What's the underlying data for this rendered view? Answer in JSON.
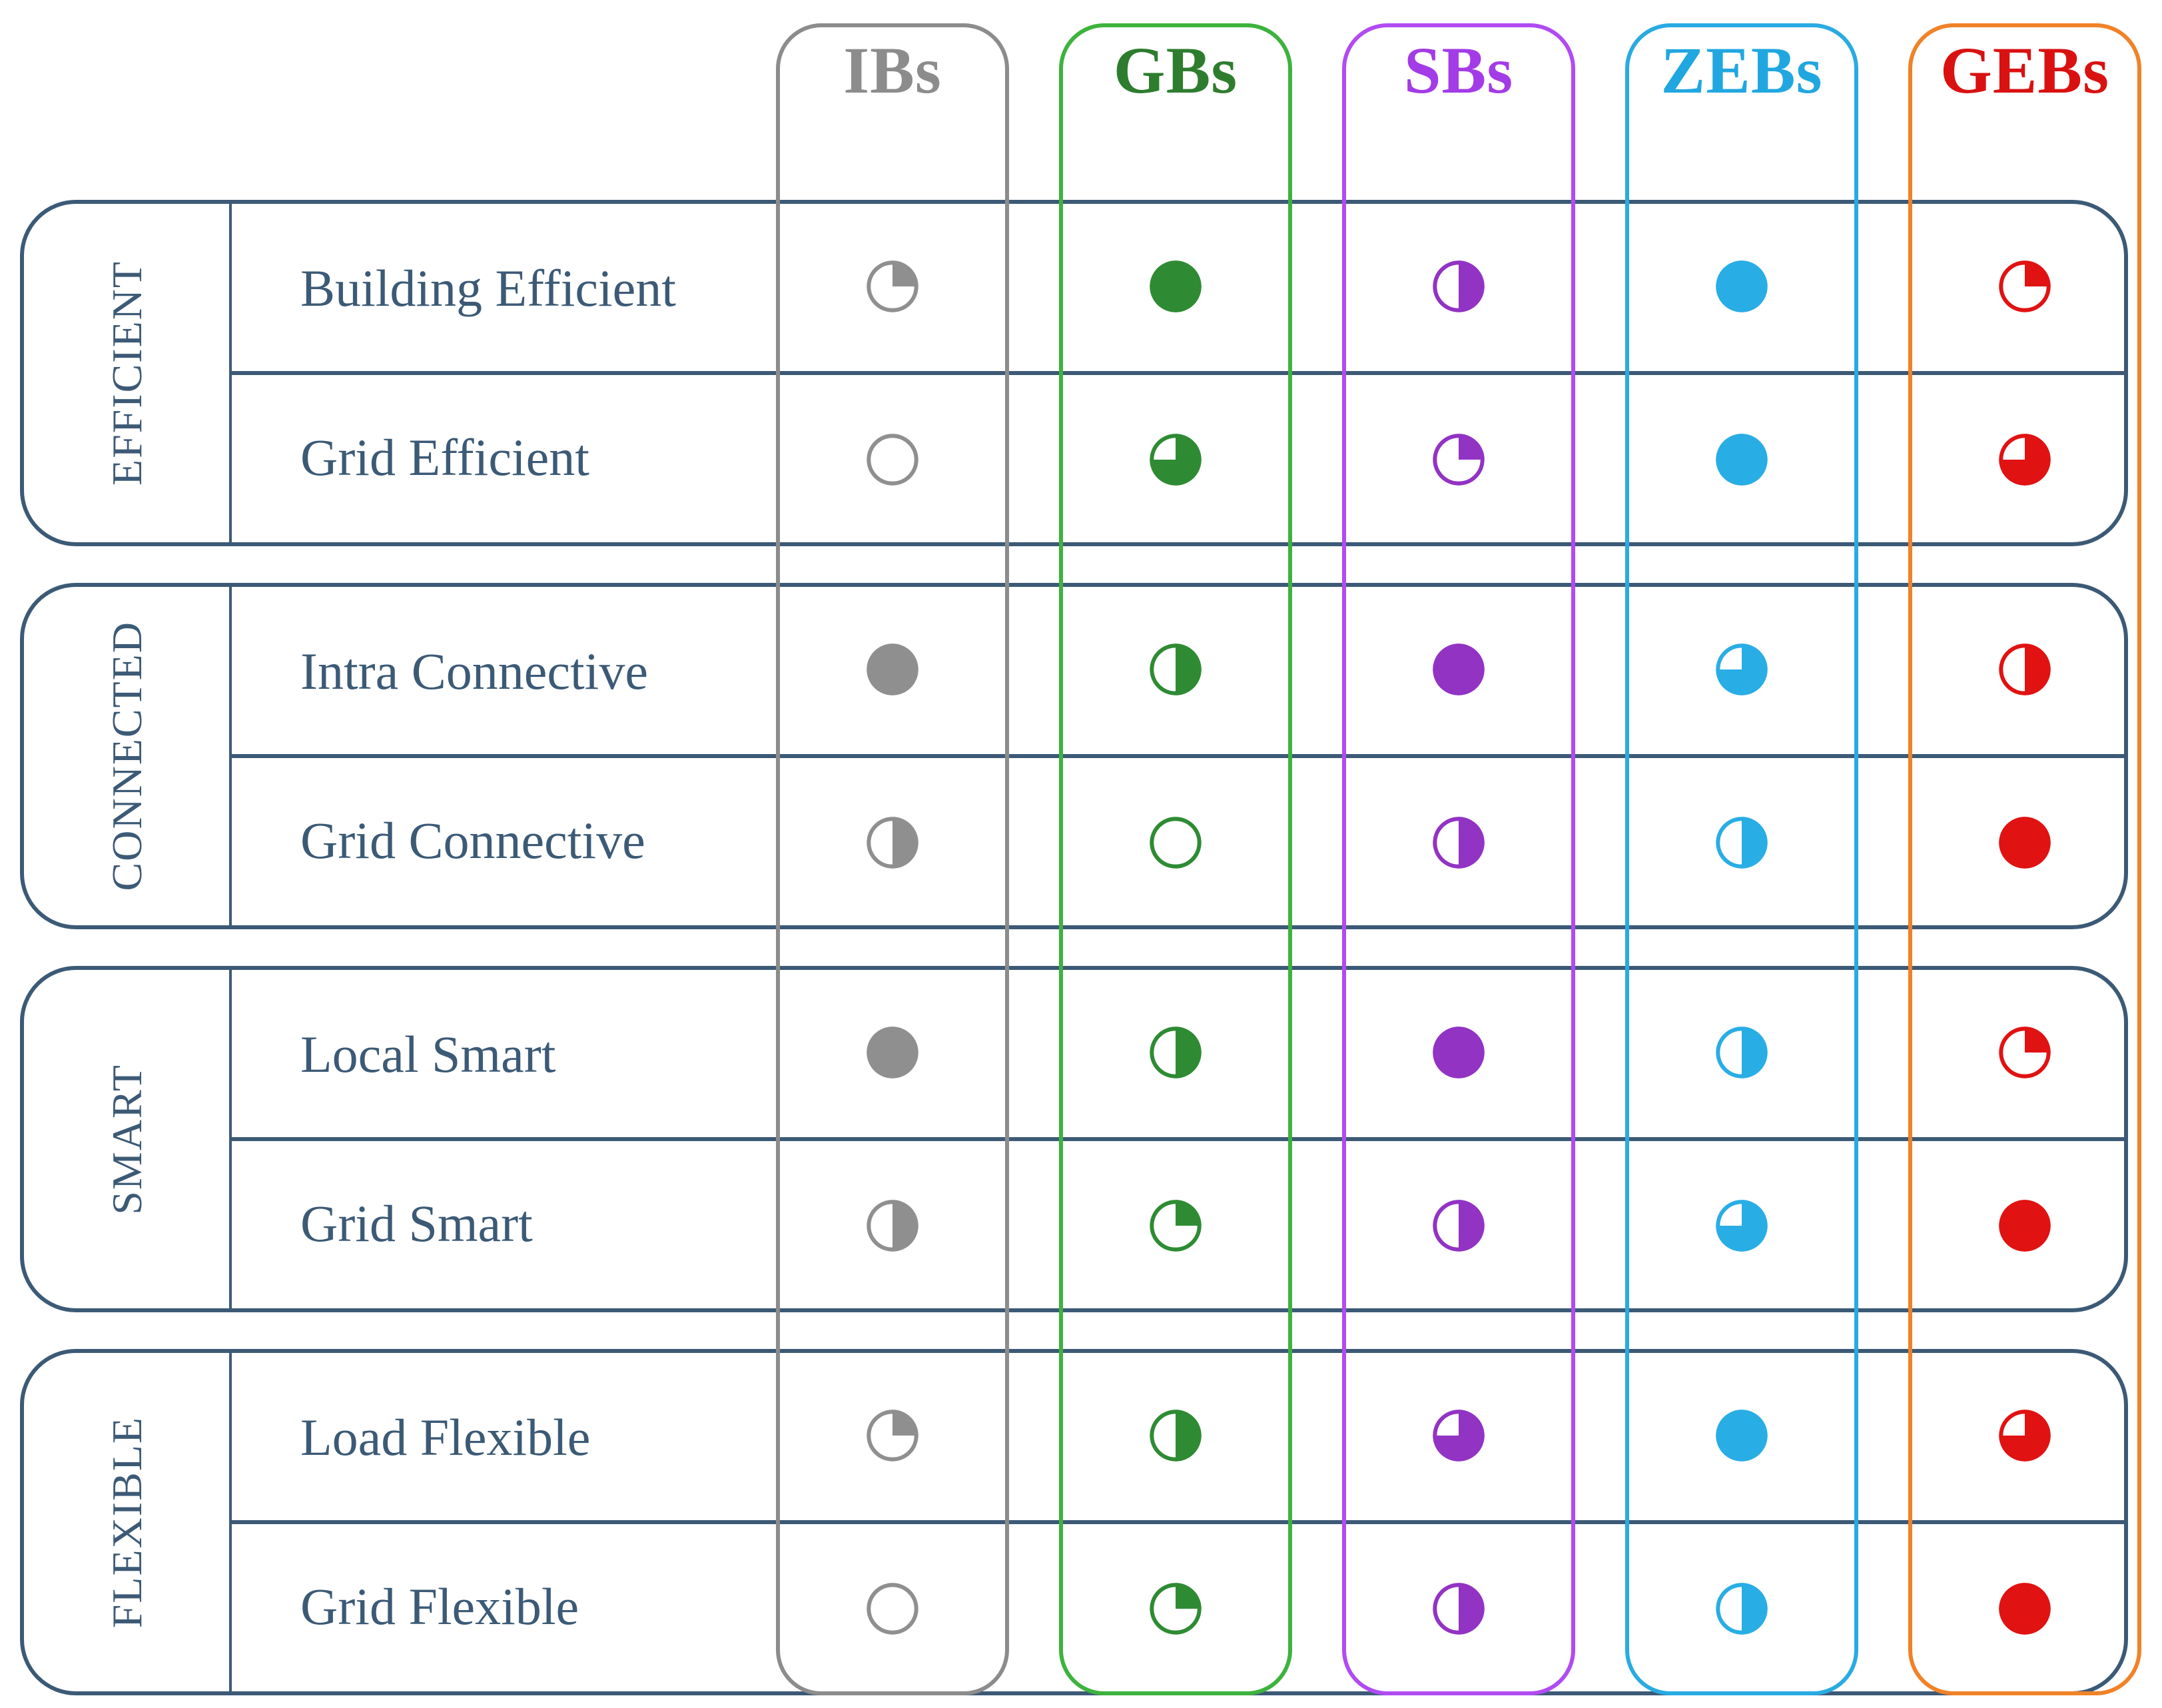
{
  "style": {
    "frame_color": "#3C5A76",
    "background": "#FFFFFF",
    "label_text_color": "#3C5A76"
  },
  "chart_data": {
    "type": "table",
    "description": "Harvey-ball comparison matrix of building types vs. characteristics; each cell is a pie icon filled 0, 25, 50, 75 or 100 percent",
    "value_unit": "percent_filled",
    "value_scale": [
      0,
      25,
      50,
      75,
      100
    ],
    "columns": [
      {
        "id": "ibs",
        "label": "IBs",
        "text_color": "#8C8C8C",
        "pill_color": "#8C8C8C",
        "ball_color": "#8F8F8F"
      },
      {
        "id": "gbs",
        "label": "GBs",
        "text_color": "#2E7D2E",
        "pill_color": "#3DB33D",
        "ball_color": "#2E8B33"
      },
      {
        "id": "sbs",
        "label": "SBs",
        "text_color": "#A33BE6",
        "pill_color": "#B14BF2",
        "ball_color": "#9233C4"
      },
      {
        "id": "zebs",
        "label": "ZEBs",
        "text_color": "#21A7E0",
        "pill_color": "#29ABE2",
        "ball_color": "#29ADE5"
      },
      {
        "id": "gebs",
        "label": "GEBs",
        "text_color": "#D91111",
        "pill_color": "#F08228",
        "ball_color": "#E01212"
      }
    ],
    "groups": [
      {
        "label": "EFFICIENT",
        "rows": [
          {
            "label": "Building Efficient",
            "values": [
              25,
              100,
              50,
              100,
              25
            ]
          },
          {
            "label": "Grid Efficient",
            "values": [
              0,
              75,
              25,
              100,
              75
            ]
          }
        ]
      },
      {
        "label": "CONNECTED",
        "rows": [
          {
            "label": "Intra Connective",
            "values": [
              100,
              50,
              100,
              75,
              50
            ]
          },
          {
            "label": "Grid Connective",
            "values": [
              50,
              0,
              50,
              50,
              100
            ]
          }
        ]
      },
      {
        "label": "SMART",
        "rows": [
          {
            "label": "Local Smart",
            "values": [
              100,
              50,
              100,
              50,
              25
            ]
          },
          {
            "label": "Grid Smart",
            "values": [
              50,
              25,
              50,
              75,
              100
            ]
          }
        ]
      },
      {
        "label": "FLEXIBLE",
        "rows": [
          {
            "label": "Load Flexible",
            "values": [
              25,
              50,
              75,
              100,
              75
            ]
          },
          {
            "label": "Grid Flexible",
            "values": [
              0,
              25,
              50,
              50,
              100
            ]
          }
        ]
      }
    ]
  }
}
